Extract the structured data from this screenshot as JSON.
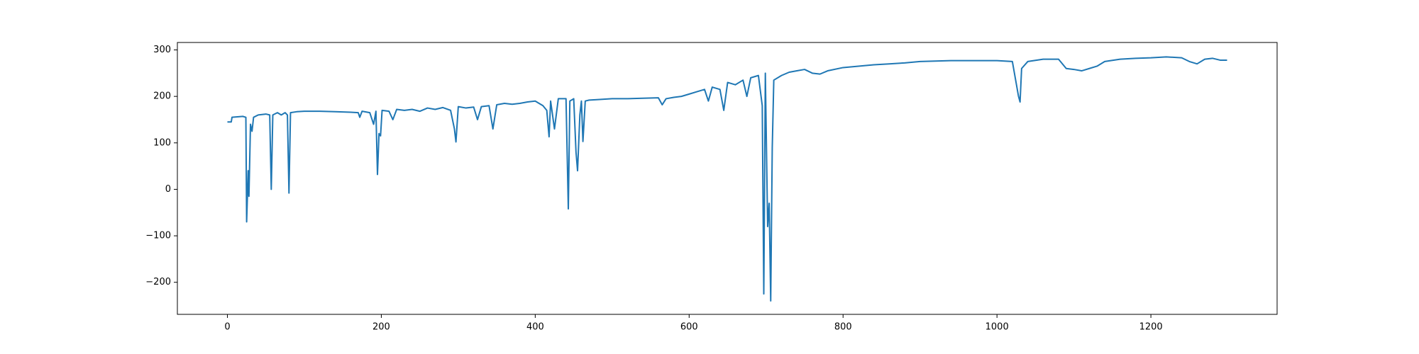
{
  "chart_data": {
    "type": "line",
    "x": [
      0,
      5,
      6,
      20,
      24,
      25,
      27,
      28,
      30,
      32,
      34,
      40,
      50,
      55,
      57,
      59,
      65,
      70,
      75,
      78,
      80,
      82,
      90,
      100,
      120,
      140,
      160,
      170,
      172,
      175,
      185,
      190,
      193,
      195,
      197,
      199,
      201,
      210,
      215,
      220,
      230,
      240,
      250,
      260,
      270,
      280,
      290,
      295,
      297,
      300,
      310,
      320,
      325,
      330,
      340,
      345,
      350,
      360,
      370,
      380,
      390,
      400,
      410,
      415,
      418,
      420,
      425,
      430,
      440,
      443,
      445,
      450,
      453,
      455,
      458,
      460,
      462,
      465,
      470,
      480,
      500,
      520,
      540,
      560,
      565,
      570,
      580,
      590,
      600,
      610,
      620,
      625,
      630,
      640,
      645,
      650,
      660,
      670,
      675,
      680,
      690,
      695,
      697,
      699,
      702,
      704,
      706,
      708,
      710,
      720,
      730,
      740,
      750,
      760,
      770,
      780,
      800,
      820,
      840,
      860,
      880,
      900,
      920,
      940,
      960,
      980,
      1000,
      1020,
      1028,
      1030,
      1032,
      1040,
      1060,
      1080,
      1090,
      1100,
      1110,
      1120,
      1130,
      1140,
      1160,
      1180,
      1200,
      1220,
      1240,
      1250,
      1260,
      1270,
      1280,
      1290,
      1299
    ],
    "series": [
      {
        "color": "#1f77b4",
        "values": [
          145,
          145,
          155,
          157,
          155,
          -70,
          40,
          -15,
          140,
          125,
          155,
          160,
          162,
          160,
          0,
          160,
          165,
          160,
          165,
          160,
          -8,
          165,
          167,
          168,
          168,
          167,
          166,
          165,
          155,
          168,
          165,
          140,
          168,
          32,
          120,
          115,
          170,
          168,
          150,
          172,
          170,
          172,
          168,
          175,
          172,
          176,
          170,
          130,
          102,
          178,
          175,
          177,
          150,
          178,
          180,
          130,
          182,
          185,
          183,
          185,
          188,
          190,
          180,
          170,
          113,
          190,
          130,
          195,
          195,
          -42,
          190,
          195,
          80,
          40,
          160,
          190,
          103,
          190,
          192,
          193,
          195,
          195,
          196,
          197,
          182,
          195,
          198,
          200,
          205,
          210,
          215,
          190,
          220,
          215,
          170,
          230,
          225,
          235,
          200,
          240,
          245,
          180,
          -225,
          250,
          -80,
          -30,
          -240,
          90,
          235,
          245,
          252,
          255,
          258,
          250,
          248,
          255,
          262,
          265,
          268,
          270,
          272,
          275,
          276,
          277,
          277,
          277,
          277,
          275,
          200,
          188,
          260,
          275,
          280,
          280,
          260,
          258,
          255,
          260,
          265,
          275,
          280,
          282,
          283,
          285,
          283,
          275,
          270,
          280,
          282,
          278,
          278
        ]
      }
    ],
    "xlim": [
      -65,
      1364
    ],
    "ylim": [
      -269,
      316
    ],
    "xticks": [
      0,
      200,
      400,
      600,
      800,
      1000,
      1200
    ],
    "yticks": [
      {
        "value": -200,
        "label": "−200"
      },
      {
        "value": -100,
        "label": "−100"
      },
      0,
      100,
      200,
      300
    ]
  }
}
